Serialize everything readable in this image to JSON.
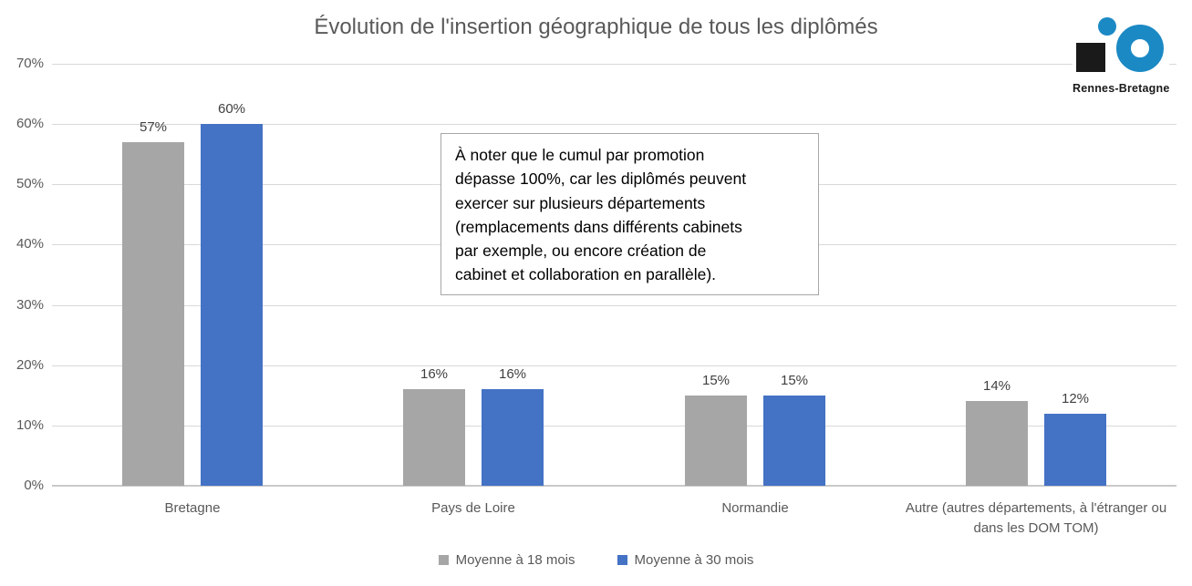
{
  "logo": {
    "text": "Rennes-Bretagne",
    "square_color": "#1a1a1a",
    "blue": "#1b89c4"
  },
  "annotation": {
    "text": "À noter que le cumul par promotion\ndépasse 100%, car les diplômés peuvent\nexercer sur plusieurs départements\n(remplacements dans différents cabinets\npar exemple, ou encore création de\ncabinet et collaboration en parallèle)."
  },
  "chart_data": {
    "type": "bar",
    "title": "Évolution de l'insertion géographique de tous les diplômés",
    "categories": [
      "Bretagne",
      "Pays de Loire",
      "Normandie",
      "Autre (autres départements, à l'étranger ou dans les DOM TOM)"
    ],
    "series": [
      {
        "name": "Moyenne à 18 mois",
        "color": "#a6a6a6",
        "values": [
          57,
          16,
          15,
          14
        ]
      },
      {
        "name": "Moyenne à 30 mois",
        "color": "#4472c4",
        "values": [
          60,
          16,
          15,
          12
        ]
      }
    ],
    "value_label_suffix": "%",
    "ylim": [
      0,
      70
    ],
    "ytick_step": 10,
    "ytick_labels": [
      "0%",
      "10%",
      "20%",
      "30%",
      "40%",
      "50%",
      "60%",
      "70%"
    ],
    "grid": true,
    "legend_position": "bottom",
    "axis_text_color": "#595959",
    "value_label_color": "#404040",
    "grid_color": "#d9d9d9",
    "axis_line_color": "#c9c9c9"
  }
}
